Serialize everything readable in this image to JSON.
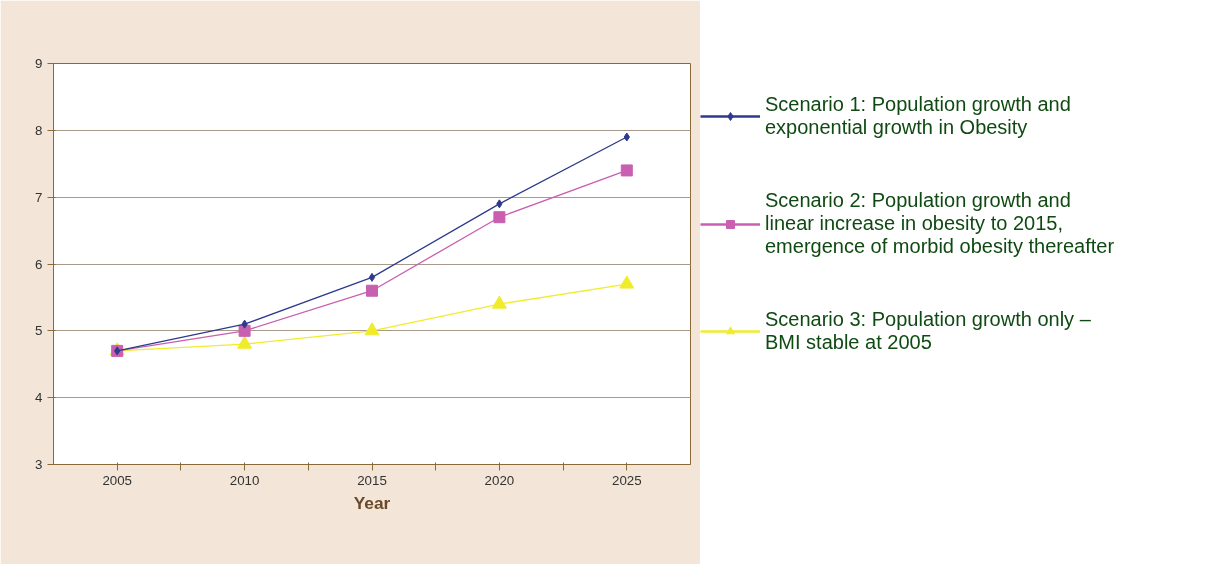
{
  "chart_data": {
    "type": "line",
    "xlabel": "Year",
    "x": [
      2005,
      2010,
      2015,
      2020,
      2025
    ],
    "series": [
      {
        "name": "Scenario 1: Population growth and exponential growth in Obesity",
        "color": "#2e3a8c",
        "marker": "diamond",
        "values": [
          4.7,
          5.1,
          5.8,
          6.9,
          7.9
        ]
      },
      {
        "name": "Scenario 2: Population growth and linear increase in obesity to 2015, emergence of morbid obesity thereafter",
        "color": "#c85fb0",
        "marker": "square",
        "values": [
          4.7,
          5.0,
          5.6,
          6.7,
          7.4
        ]
      },
      {
        "name": "Scenario 3: Population growth only – BMI stable at 2005",
        "color": "#f0ec2c",
        "marker": "triangle",
        "values": [
          4.7,
          4.8,
          5.0,
          5.4,
          5.7
        ]
      }
    ],
    "xlim": [
      2002.5,
      2027.5
    ],
    "ylim": [
      3,
      9
    ],
    "xticks": [
      2005,
      {
        "value": 2007.5,
        "label": null
      },
      2010,
      {
        "value": 2012.5,
        "label": null
      },
      2015,
      {
        "value": 2017.5,
        "label": null
      },
      2020,
      {
        "value": 2022.5,
        "label": null
      },
      2025
    ],
    "yticks": [
      3,
      4,
      5,
      6,
      7,
      8,
      9
    ],
    "grid": "y",
    "legend": "right"
  }
}
